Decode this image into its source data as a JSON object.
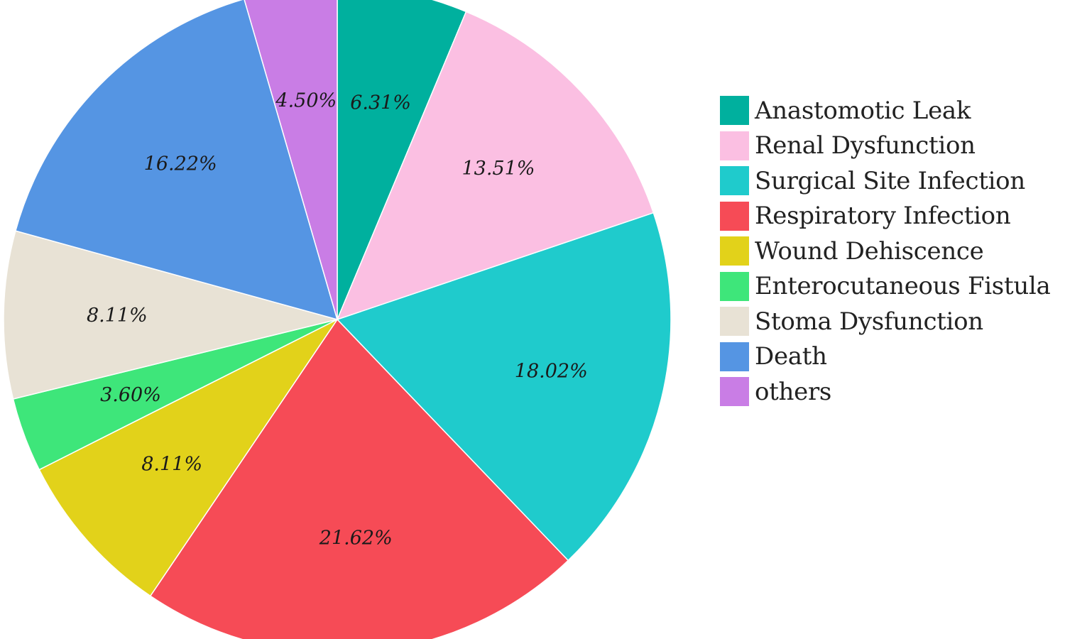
{
  "chart_data": {
    "type": "pie",
    "title": "",
    "start_angle_deg": 0,
    "direction": "clockwise",
    "legend_position": "right",
    "slices": [
      {
        "label": "Anastomotic Leak",
        "value": 6.31,
        "value_label": "6.31%",
        "color": "#00b09e"
      },
      {
        "label": "Renal Dysfunction",
        "value": 13.51,
        "value_label": "13.51%",
        "color": "#fbbfe2"
      },
      {
        "label": "Surgical Site Infection",
        "value": 18.02,
        "value_label": "18.02%",
        "color": "#1fcbcc"
      },
      {
        "label": "Respiratory Infection",
        "value": 21.62,
        "value_label": "21.62%",
        "color": "#f64b56"
      },
      {
        "label": "Wound Dehiscence",
        "value": 8.11,
        "value_label": "8.11%",
        "color": "#e2d21a"
      },
      {
        "label": "Enterocutaneous Fistula",
        "value": 3.6,
        "value_label": "3.60%",
        "color": "#3ee67a"
      },
      {
        "label": "Stoma Dysfunction",
        "value": 8.11,
        "value_label": "8.11%",
        "color": "#e8e2d5"
      },
      {
        "label": "Death",
        "value": 16.22,
        "value_label": "16.22%",
        "color": "#5595e3"
      },
      {
        "label": "others",
        "value": 4.5,
        "value_label": "4.50%",
        "color": "#c97de5"
      }
    ]
  }
}
